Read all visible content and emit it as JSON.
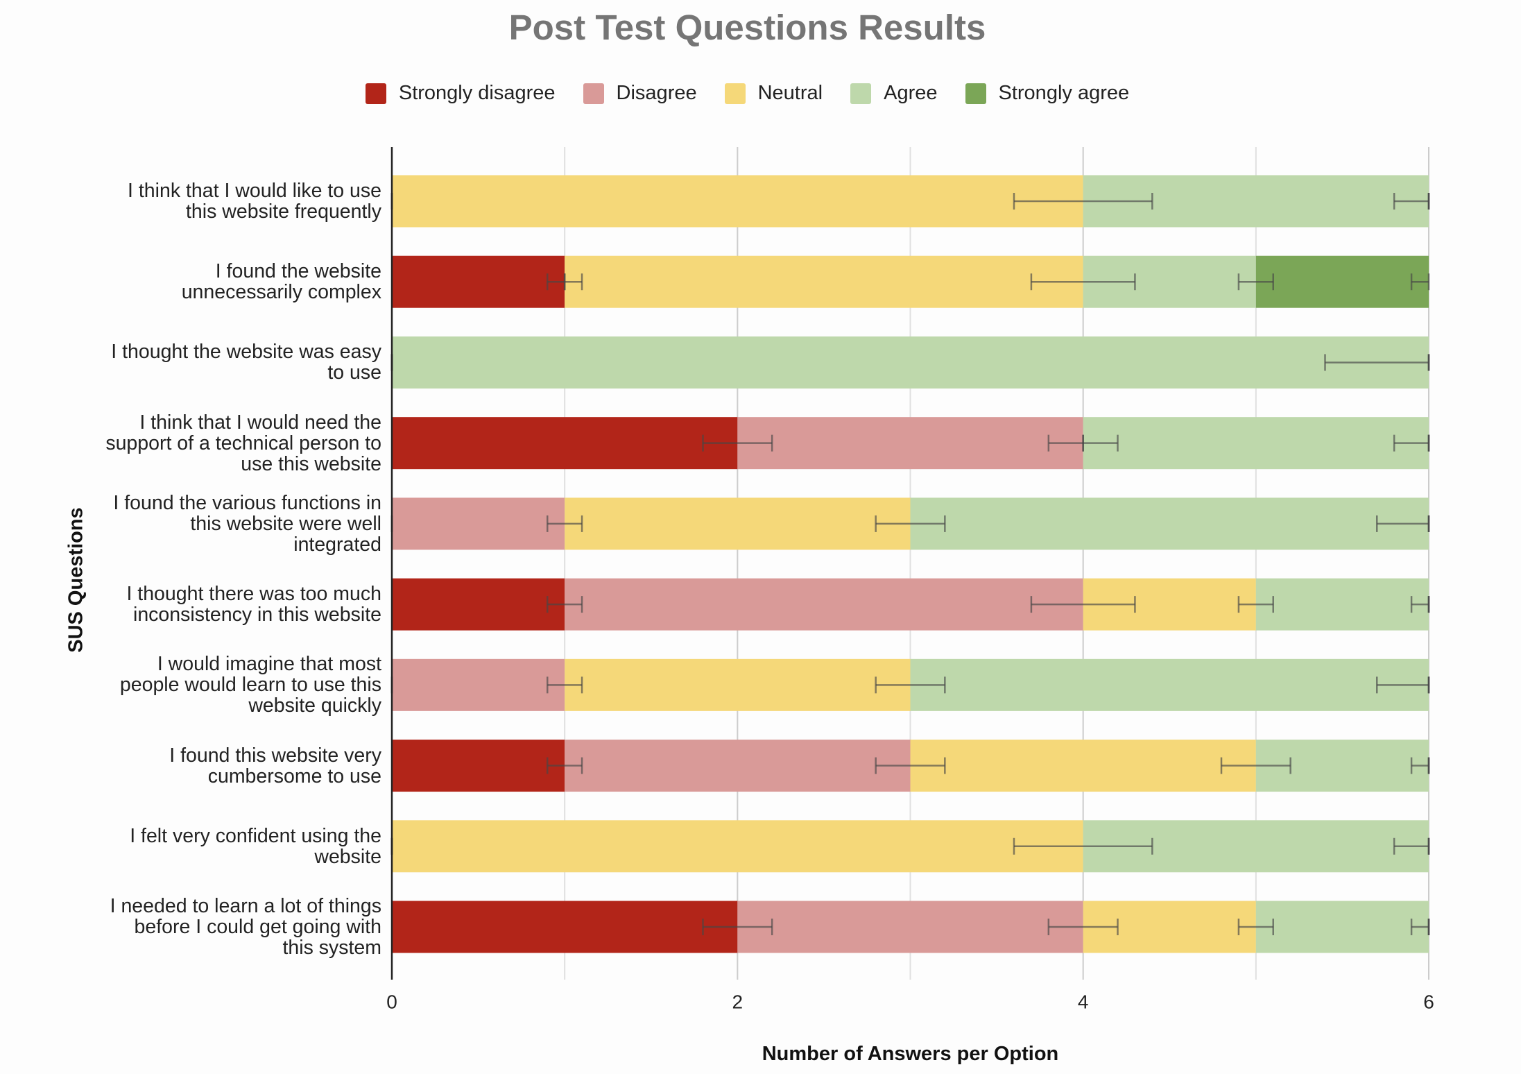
{
  "chart_data": {
    "type": "stacked-bar-horizontal",
    "title": "Post Test Questions Results",
    "x_label": "Number of Answers per Option",
    "y_label": "SUS Questions",
    "categories": [
      "I think that I would like to use this website frequently",
      "I found the website unnecessarily complex",
      "I thought the website was easy to use",
      "I think that I would need the support of a technical person to use this website",
      "I found the various functions in this website were well integrated",
      "I thought there was too much inconsistency in this website",
      "I would imagine that most people would learn to use this website quickly",
      "I found this website very cumbersome to use",
      "I felt very confident using the website",
      "I needed to learn a lot of things before I could get going with this system"
    ],
    "series": [
      {
        "name": "Strongly disagree",
        "color": "#b22519",
        "values": [
          0,
          1,
          0,
          2,
          0,
          1,
          0,
          1,
          0,
          2
        ],
        "errors": [
          0,
          0.1,
          0,
          0.2,
          0,
          0.1,
          0,
          0.1,
          0,
          0.2
        ]
      },
      {
        "name": "Disagree",
        "color": "#d99a98",
        "values": [
          0,
          0,
          0,
          2,
          1,
          3,
          1,
          2,
          0,
          2
        ],
        "errors": [
          0,
          0,
          0,
          0.2,
          0.1,
          0.3,
          0.1,
          0.2,
          0,
          0.2
        ]
      },
      {
        "name": "Neutral",
        "color": "#f5d879",
        "values": [
          4,
          3,
          0,
          0,
          2,
          1,
          2,
          2,
          4,
          1
        ],
        "errors": [
          0.4,
          0.3,
          0,
          0,
          0.2,
          0.1,
          0.2,
          0.2,
          0.4,
          0.1
        ]
      },
      {
        "name": "Agree",
        "color": "#bed8ab",
        "values": [
          2,
          1,
          6,
          2,
          3,
          1,
          3,
          1,
          2,
          1
        ],
        "errors": [
          0.2,
          0.1,
          0.6,
          0.2,
          0.3,
          0.1,
          0.3,
          0.1,
          0.2,
          0.1
        ]
      },
      {
        "name": "Strongly agree",
        "color": "#7ba657",
        "values": [
          0,
          1,
          0,
          0,
          0,
          0,
          0,
          0,
          0,
          0
        ],
        "errors": [
          0,
          0.1,
          0,
          0,
          0,
          0,
          0,
          0,
          0,
          0
        ]
      }
    ],
    "xlim": [
      0,
      6
    ],
    "xticks": [
      0,
      2,
      4,
      6
    ],
    "minor_xticks": [
      1,
      3,
      5
    ],
    "grid": true
  }
}
